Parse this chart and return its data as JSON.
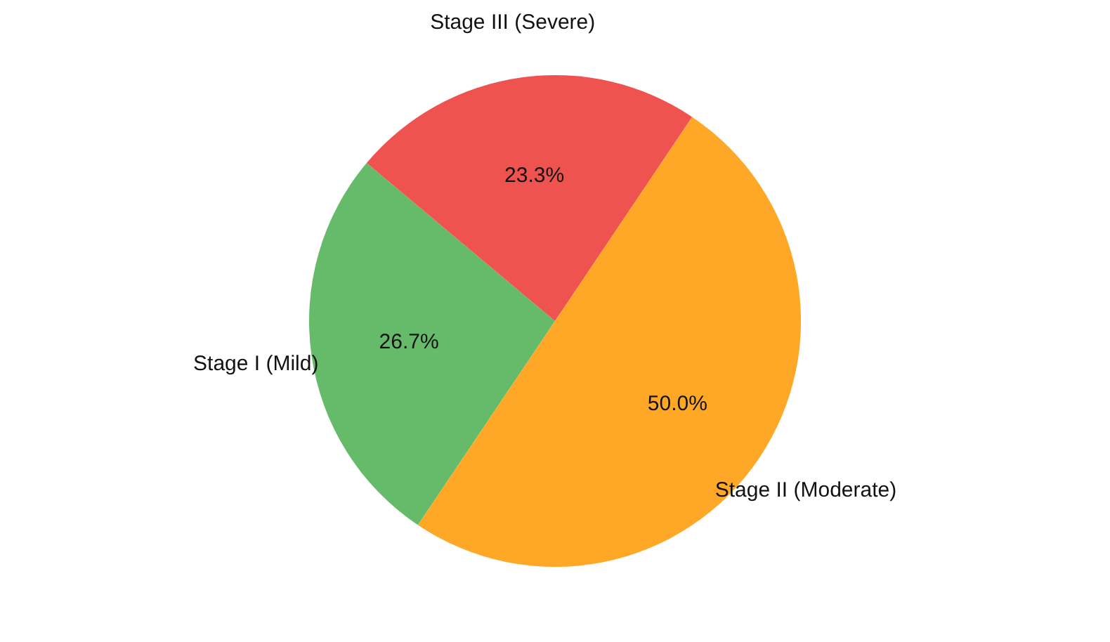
{
  "chart_data": {
    "type": "pie",
    "categories": [
      "Stage I (Mild)",
      "Stage II (Moderate)",
      "Stage III (Severe)"
    ],
    "values": [
      26.7,
      50.0,
      23.3
    ],
    "colors": [
      "#66bb6a",
      "#ffa726",
      "#ef5350"
    ],
    "value_labels": [
      "26.7%",
      "50.0%",
      "23.3%"
    ]
  }
}
